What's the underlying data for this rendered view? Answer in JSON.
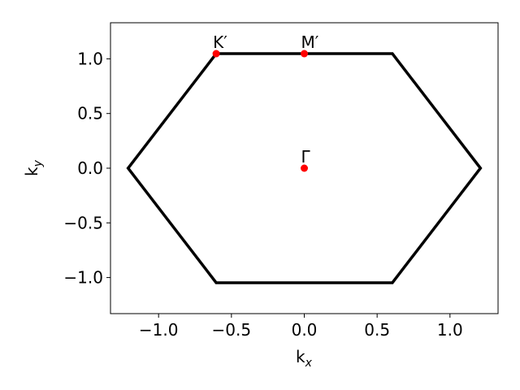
{
  "chart_data": {
    "type": "scatter",
    "title": "",
    "xlabel": {
      "base": "k",
      "sub": "x"
    },
    "ylabel": {
      "base": "k",
      "sub": "y"
    },
    "xlim": [
      -1.33,
      1.33
    ],
    "ylim": [
      -1.33,
      1.33
    ],
    "xticks": [
      {
        "value": -1.0,
        "label": "−1.0"
      },
      {
        "value": -0.5,
        "label": "−0.5"
      },
      {
        "value": 0.0,
        "label": "0.0"
      },
      {
        "value": 0.5,
        "label": "0.5"
      },
      {
        "value": 1.0,
        "label": "1.0"
      }
    ],
    "yticks": [
      {
        "value": -1.0,
        "label": "−1.0"
      },
      {
        "value": -0.5,
        "label": "−0.5"
      },
      {
        "value": 0.0,
        "label": "0.0"
      },
      {
        "value": 0.5,
        "label": "0.5"
      },
      {
        "value": 1.0,
        "label": "1.0"
      }
    ],
    "grid": false,
    "hexagon": {
      "color": "#000000",
      "vertices": [
        [
          1.2092,
          0.0
        ],
        [
          0.6046,
          1.0472
        ],
        [
          -0.6046,
          1.0472
        ],
        [
          -1.2092,
          0.0
        ],
        [
          -0.6046,
          -1.0472
        ],
        [
          0.6046,
          -1.0472
        ]
      ]
    },
    "points": [
      {
        "label": "K′",
        "x": -0.6046,
        "y": 1.0472
      },
      {
        "label": "M′",
        "x": 0.0,
        "y": 1.0472
      },
      {
        "label": "Γ",
        "x": 0.0,
        "y": 0.0
      }
    ],
    "point_color": "#ff0000"
  }
}
